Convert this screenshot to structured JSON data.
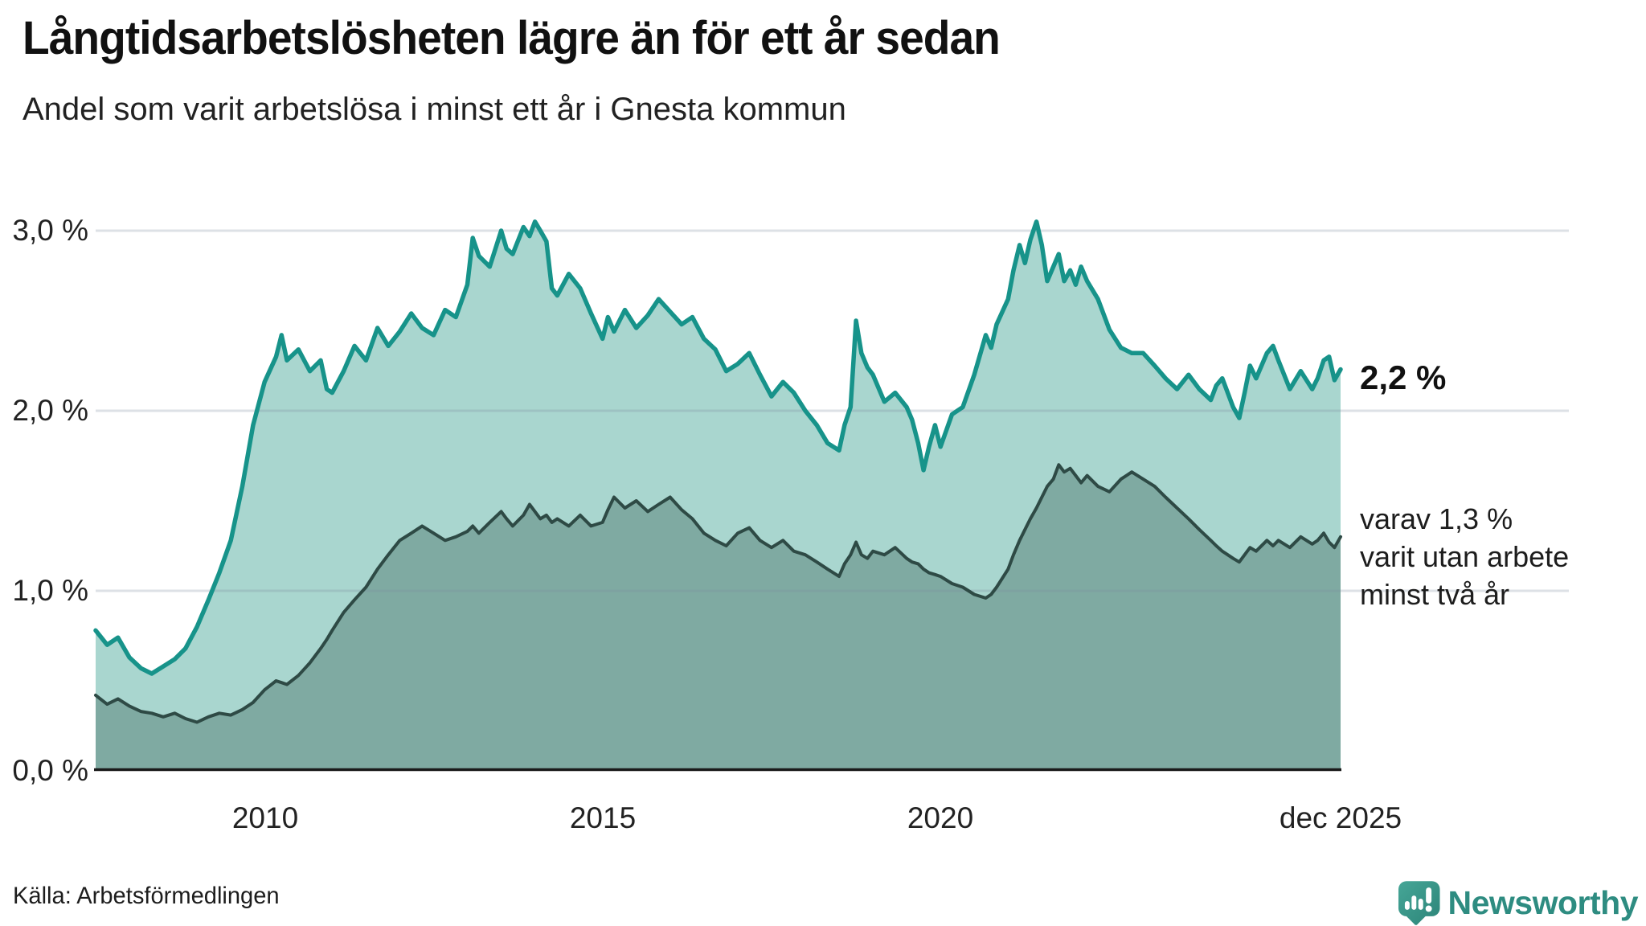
{
  "header": {
    "title": "Långtidsarbetslösheten lägre än för ett år sedan",
    "subtitle": "Andel som varit arbetslösa i minst ett år i Gnesta kommun"
  },
  "footer": {
    "source": "Källa: Arbetsförmedlingen",
    "logo_text": "Newsworthy",
    "logo_color": "#2e8c81"
  },
  "chart_data": {
    "type": "area",
    "title": "Långtidsarbetslösheten lägre än för ett år sedan",
    "subtitle": "Andel som varit arbetslösa i minst ett år i Gnesta kommun",
    "unit": "%",
    "grid": true,
    "grid_color": "rgba(125,138,158,0.26)",
    "axis_color": "#1a1a1a",
    "x_range": [
      2007.5,
      2025.92
    ],
    "y_range": [
      0,
      3.0
    ],
    "y_ticks": [
      "3,0 %",
      "2,0 %",
      "1,0 %",
      "0,0 %"
    ],
    "y_tick_values": [
      3.0,
      2.0,
      1.0,
      0.0
    ],
    "x_ticks": [
      "2010",
      "2015",
      "2020",
      "dec 2025"
    ],
    "x_tick_values": [
      2010,
      2015,
      2020,
      2025.92
    ],
    "annotations": {
      "end_value_label": "2,2 %",
      "secondary_label_lines": [
        "varav 1,3 %",
        "varit utan arbete",
        "minst två år"
      ]
    },
    "x": [
      2007.5,
      2007.67,
      2007.83,
      2008.0,
      2008.17,
      2008.33,
      2008.5,
      2008.67,
      2008.83,
      2009.0,
      2009.17,
      2009.33,
      2009.5,
      2009.67,
      2009.83,
      2010.0,
      2010.17,
      2010.25,
      2010.33,
      2010.5,
      2010.67,
      2010.83,
      2010.92,
      2011.0,
      2011.17,
      2011.33,
      2011.5,
      2011.67,
      2011.83,
      2012.0,
      2012.17,
      2012.33,
      2012.5,
      2012.67,
      2012.83,
      2013.0,
      2013.08,
      2013.17,
      2013.33,
      2013.5,
      2013.58,
      2013.67,
      2013.83,
      2013.92,
      2014.0,
      2014.08,
      2014.17,
      2014.25,
      2014.33,
      2014.5,
      2014.67,
      2014.83,
      2015.0,
      2015.08,
      2015.17,
      2015.33,
      2015.5,
      2015.67,
      2015.83,
      2016.0,
      2016.17,
      2016.33,
      2016.5,
      2016.67,
      2016.83,
      2017.0,
      2017.17,
      2017.33,
      2017.5,
      2017.67,
      2017.83,
      2018.0,
      2018.17,
      2018.33,
      2018.5,
      2018.58,
      2018.67,
      2018.75,
      2018.83,
      2018.92,
      2019.0,
      2019.17,
      2019.33,
      2019.5,
      2019.58,
      2019.67,
      2019.75,
      2019.83,
      2019.92,
      2020.0,
      2020.17,
      2020.33,
      2020.5,
      2020.67,
      2020.75,
      2020.83,
      2021.0,
      2021.08,
      2021.17,
      2021.25,
      2021.33,
      2021.42,
      2021.5,
      2021.58,
      2021.67,
      2021.75,
      2021.83,
      2021.92,
      2022.0,
      2022.08,
      2022.17,
      2022.33,
      2022.5,
      2022.67,
      2022.83,
      2023.0,
      2023.17,
      2023.33,
      2023.5,
      2023.67,
      2023.83,
      2024.0,
      2024.08,
      2024.17,
      2024.33,
      2024.42,
      2024.5,
      2024.58,
      2024.67,
      2024.83,
      2024.92,
      2025.0,
      2025.17,
      2025.33,
      2025.5,
      2025.58,
      2025.67,
      2025.75,
      2025.83,
      2025.92
    ],
    "series": [
      {
        "name": "unemployed_at_least_1_year",
        "line_color": "#17938a",
        "fill_color": "#a9d6cf",
        "end_value": "2,2 %",
        "values": [
          0.78,
          0.7,
          0.74,
          0.63,
          0.57,
          0.54,
          0.58,
          0.62,
          0.68,
          0.8,
          0.95,
          1.1,
          1.28,
          1.58,
          1.92,
          2.16,
          2.3,
          2.42,
          2.28,
          2.34,
          2.22,
          2.28,
          2.12,
          2.1,
          2.22,
          2.36,
          2.28,
          2.46,
          2.36,
          2.44,
          2.54,
          2.46,
          2.42,
          2.56,
          2.52,
          2.7,
          2.96,
          2.86,
          2.8,
          3.0,
          2.9,
          2.87,
          3.02,
          2.97,
          3.05,
          3.0,
          2.94,
          2.68,
          2.64,
          2.76,
          2.68,
          2.54,
          2.4,
          2.52,
          2.44,
          2.56,
          2.46,
          2.53,
          2.62,
          2.55,
          2.48,
          2.52,
          2.4,
          2.34,
          2.22,
          2.26,
          2.32,
          2.2,
          2.08,
          2.16,
          2.1,
          2.0,
          1.92,
          1.82,
          1.78,
          1.92,
          2.02,
          2.5,
          2.32,
          2.24,
          2.2,
          2.05,
          2.1,
          2.02,
          1.95,
          1.82,
          1.67,
          1.8,
          1.92,
          1.8,
          1.98,
          2.02,
          2.2,
          2.42,
          2.35,
          2.48,
          2.62,
          2.78,
          2.92,
          2.82,
          2.95,
          3.05,
          2.92,
          2.72,
          2.8,
          2.87,
          2.72,
          2.78,
          2.7,
          2.8,
          2.72,
          2.62,
          2.45,
          2.35,
          2.32,
          2.32,
          2.25,
          2.18,
          2.12,
          2.2,
          2.12,
          2.06,
          2.14,
          2.18,
          2.02,
          1.96,
          2.1,
          2.25,
          2.18,
          2.32,
          2.36,
          2.28,
          2.12,
          2.22,
          2.12,
          2.18,
          2.28,
          2.3,
          2.17,
          2.23
        ]
      },
      {
        "name": "unemployed_at_least_2_years",
        "line_color": "#2e4a45",
        "fill_color": "#7faaa2",
        "end_value": "1,3 %",
        "values": [
          0.42,
          0.37,
          0.4,
          0.36,
          0.33,
          0.32,
          0.3,
          0.32,
          0.29,
          0.27,
          0.3,
          0.32,
          0.31,
          0.34,
          0.38,
          0.45,
          0.5,
          0.49,
          0.48,
          0.53,
          0.6,
          0.68,
          0.73,
          0.78,
          0.88,
          0.95,
          1.02,
          1.12,
          1.2,
          1.28,
          1.32,
          1.36,
          1.32,
          1.28,
          1.3,
          1.33,
          1.36,
          1.32,
          1.38,
          1.44,
          1.4,
          1.36,
          1.42,
          1.48,
          1.44,
          1.4,
          1.42,
          1.38,
          1.4,
          1.36,
          1.42,
          1.36,
          1.38,
          1.45,
          1.52,
          1.46,
          1.5,
          1.44,
          1.48,
          1.52,
          1.45,
          1.4,
          1.32,
          1.28,
          1.25,
          1.32,
          1.35,
          1.28,
          1.24,
          1.28,
          1.22,
          1.2,
          1.16,
          1.12,
          1.08,
          1.15,
          1.2,
          1.27,
          1.2,
          1.18,
          1.22,
          1.2,
          1.24,
          1.18,
          1.16,
          1.15,
          1.12,
          1.1,
          1.09,
          1.08,
          1.04,
          1.02,
          0.98,
          0.96,
          0.98,
          1.02,
          1.12,
          1.2,
          1.28,
          1.34,
          1.4,
          1.46,
          1.52,
          1.58,
          1.62,
          1.7,
          1.66,
          1.68,
          1.64,
          1.6,
          1.64,
          1.58,
          1.55,
          1.62,
          1.66,
          1.62,
          1.58,
          1.52,
          1.46,
          1.4,
          1.34,
          1.28,
          1.25,
          1.22,
          1.18,
          1.16,
          1.2,
          1.24,
          1.22,
          1.28,
          1.25,
          1.28,
          1.24,
          1.3,
          1.26,
          1.28,
          1.32,
          1.27,
          1.24,
          1.3
        ]
      }
    ]
  }
}
